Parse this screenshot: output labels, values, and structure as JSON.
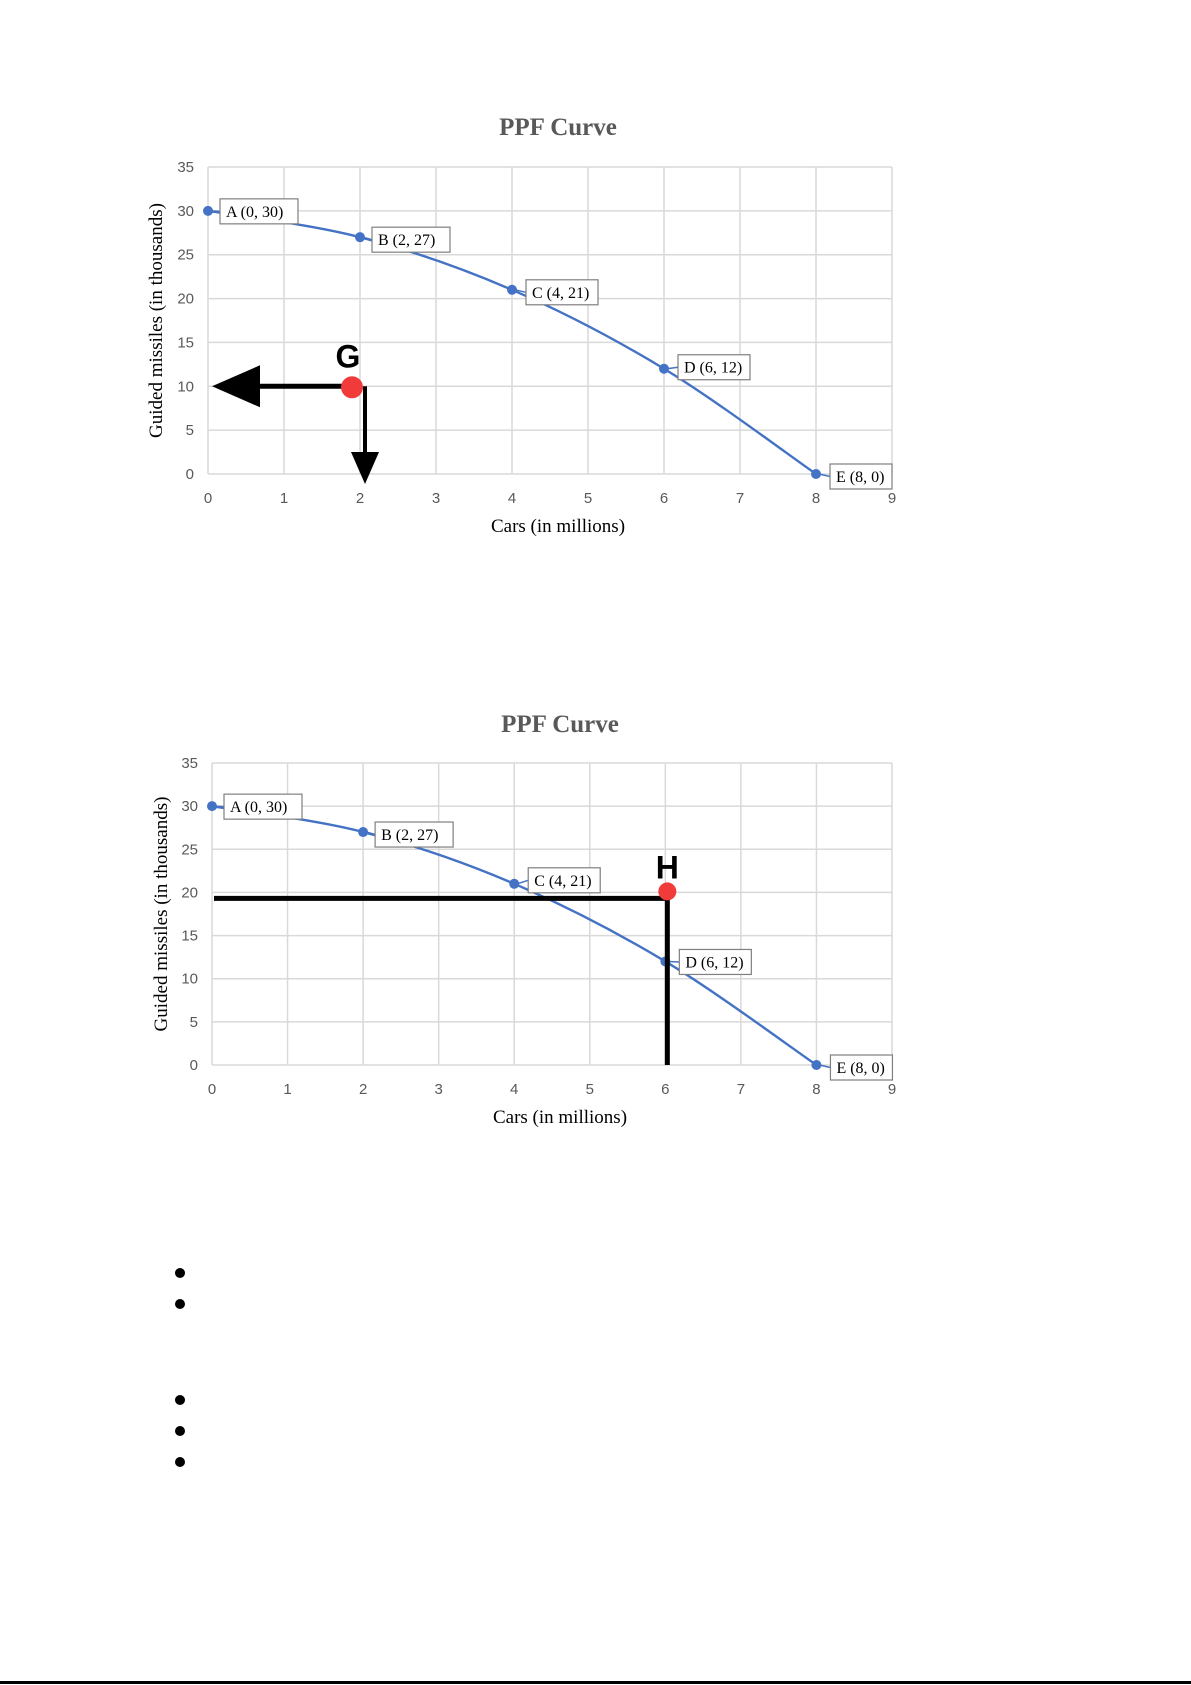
{
  "colors": {
    "series": "#4472c4",
    "marker": "#f13b3b",
    "annotation_line": "#000000",
    "grid": "#d9d9d9"
  },
  "chart_data": [
    {
      "type": "line",
      "title": "PPF Curve",
      "xlabel": "Cars (in millions)",
      "ylabel": "Guided missiles (in thousands)",
      "xlim": [
        0,
        9
      ],
      "ylim": [
        0,
        35
      ],
      "x_ticks": [
        "0",
        "1",
        "2",
        "3",
        "4",
        "5",
        "6",
        "7",
        "8",
        "9"
      ],
      "y_ticks": [
        "0",
        "5",
        "10",
        "15",
        "20",
        "25",
        "30",
        "35"
      ],
      "grid": true,
      "series": [
        {
          "x": [
            0,
            2,
            4,
            6,
            8
          ],
          "y": [
            30,
            27,
            21,
            12,
            0
          ]
        }
      ],
      "point_labels": [
        "A (0, 30)",
        "B (2, 27)",
        "C (4, 21)",
        "D (6, 12)",
        "E (8, 0)"
      ],
      "highlight_point": {
        "label": "G",
        "x": 2,
        "y": 10
      },
      "arrows": "left and down from G"
    },
    {
      "type": "line",
      "title": "PPF Curve",
      "xlabel": "Cars (in millions)",
      "ylabel": "Guided missiles (in thousands)",
      "xlim": [
        0,
        9
      ],
      "ylim": [
        0,
        35
      ],
      "x_ticks": [
        "0",
        "1",
        "2",
        "3",
        "4",
        "5",
        "6",
        "7",
        "8",
        "9"
      ],
      "y_ticks": [
        "0",
        "5",
        "10",
        "15",
        "20",
        "25",
        "30",
        "35"
      ],
      "grid": true,
      "series": [
        {
          "x": [
            0,
            2,
            4,
            6,
            8
          ],
          "y": [
            30,
            27,
            21,
            12,
            0
          ]
        }
      ],
      "point_labels": [
        "A (0, 30)",
        "B (2, 27)",
        "C (4, 21)",
        "D (6, 12)",
        "E (8, 0)"
      ],
      "highlight_point": {
        "label": "H",
        "x": 6,
        "y": 20
      },
      "guide_lines": "horizontal to y-axis and vertical to x-axis from H"
    }
  ],
  "bullets": {
    "group1_count": 2,
    "group2_count": 3
  }
}
